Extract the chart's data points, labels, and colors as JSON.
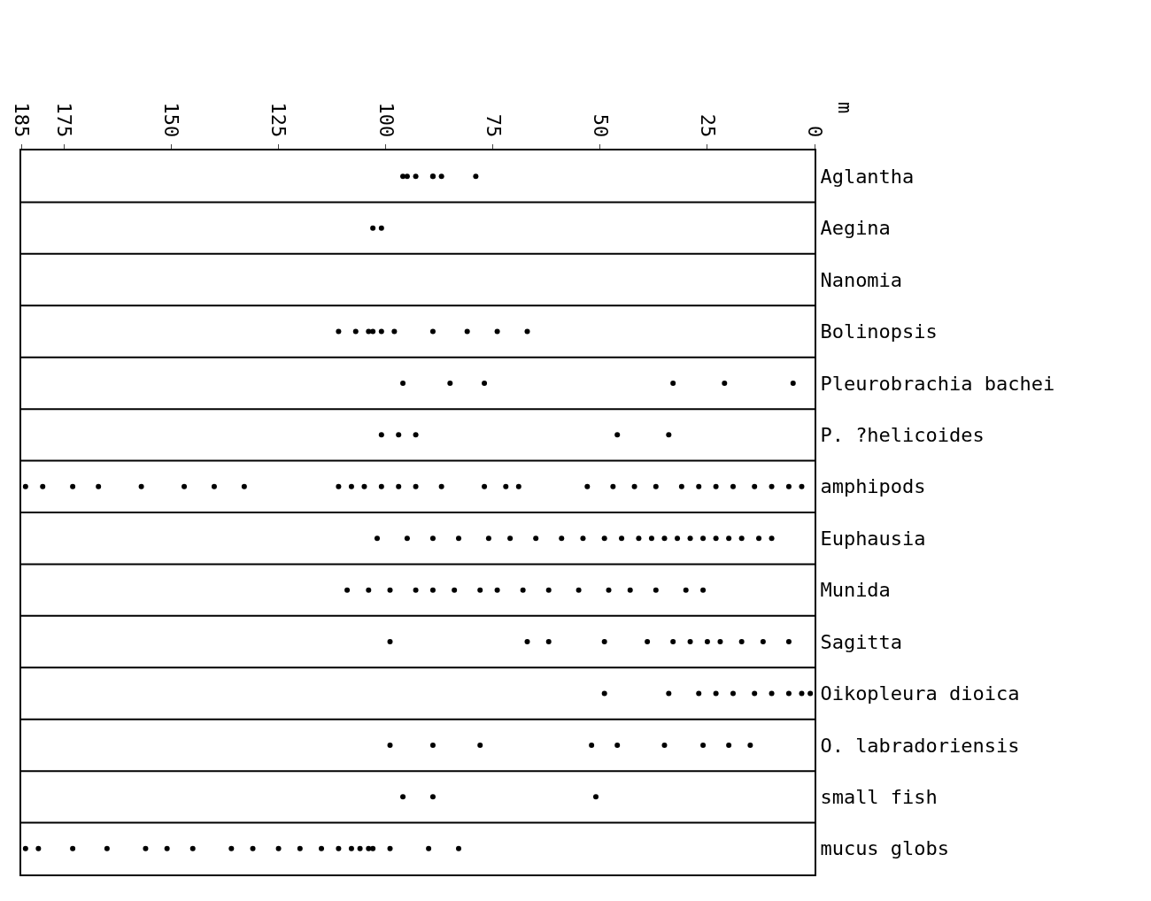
{
  "chart_data": {
    "type": "scatter",
    "annotations": [
      "m"
    ],
    "orientation": "horizontal",
    "marker": "circle",
    "grid": true,
    "categories": [
      "Aglantha",
      "Aegina",
      "Nanomia",
      "Bolinopsis",
      "Pleurobrachia bachei",
      "P. ?helicoides",
      "amphipods",
      "Euphausia",
      "Munida",
      "Sagitta",
      "Oikopleura dioica",
      "O. labradoriensis",
      "small fish",
      "mucus globs"
    ],
    "xlim": [
      185,
      0
    ],
    "xticks": [
      185,
      175,
      150,
      125,
      100,
      75,
      50,
      25,
      0
    ],
    "series": [
      {
        "color": "#000000",
        "x": [
          "Aglantha",
          "Aglantha",
          "Aglantha",
          "Aglantha",
          "Aglantha",
          "Aglantha",
          "Aglantha",
          "Aegina",
          "Aegina",
          "Bolinopsis",
          "Bolinopsis",
          "Bolinopsis",
          "Bolinopsis",
          "Bolinopsis",
          "Bolinopsis",
          "Bolinopsis",
          "Bolinopsis",
          "Bolinopsis",
          "Bolinopsis",
          "Pleurobrachia bachei",
          "Pleurobrachia bachei",
          "Pleurobrachia bachei",
          "Pleurobrachia bachei",
          "Pleurobrachia bachei",
          "Pleurobrachia bachei",
          "P. ?helicoides",
          "P. ?helicoides",
          "P. ?helicoides",
          "P. ?helicoides",
          "P. ?helicoides",
          "amphipods",
          "amphipods",
          "amphipods",
          "amphipods",
          "amphipods",
          "amphipods",
          "amphipods",
          "amphipods",
          "amphipods",
          "amphipods",
          "amphipods",
          "amphipods",
          "amphipods",
          "amphipods",
          "amphipods",
          "amphipods",
          "amphipods",
          "amphipods",
          "amphipods",
          "amphipods",
          "amphipods",
          "amphipods",
          "amphipods",
          "amphipods",
          "amphipods",
          "amphipods",
          "amphipods",
          "amphipods",
          "amphipods",
          "amphipods",
          "Euphausia",
          "Euphausia",
          "Euphausia",
          "Euphausia",
          "Euphausia",
          "Euphausia",
          "Euphausia",
          "Euphausia",
          "Euphausia",
          "Euphausia",
          "Euphausia",
          "Euphausia",
          "Euphausia",
          "Euphausia",
          "Euphausia",
          "Euphausia",
          "Euphausia",
          "Euphausia",
          "Euphausia",
          "Euphausia",
          "Euphausia",
          "Euphausia",
          "Munida",
          "Munida",
          "Munida",
          "Munida",
          "Munida",
          "Munida",
          "Munida",
          "Munida",
          "Munida",
          "Munida",
          "Munida",
          "Munida",
          "Munida",
          "Munida",
          "Munida",
          "Munida",
          "Sagitta",
          "Sagitta",
          "Sagitta",
          "Sagitta",
          "Sagitta",
          "Sagitta",
          "Sagitta",
          "Sagitta",
          "Sagitta",
          "Sagitta",
          "Sagitta",
          "Sagitta",
          "Oikopleura dioica",
          "Oikopleura dioica",
          "Oikopleura dioica",
          "Oikopleura dioica",
          "Oikopleura dioica",
          "Oikopleura dioica",
          "Oikopleura dioica",
          "Oikopleura dioica",
          "Oikopleura dioica",
          "Oikopleura dioica",
          "O. labradoriensis",
          "O. labradoriensis",
          "O. labradoriensis",
          "O. labradoriensis",
          "O. labradoriensis",
          "O. labradoriensis",
          "O. labradoriensis",
          "O. labradoriensis",
          "O. labradoriensis",
          "small fish",
          "small fish",
          "small fish",
          "mucus globs",
          "mucus globs",
          "mucus globs",
          "mucus globs",
          "mucus globs",
          "mucus globs",
          "mucus globs",
          "mucus globs",
          "mucus globs",
          "mucus globs",
          "mucus globs",
          "mucus globs",
          "mucus globs",
          "mucus globs",
          "mucus globs",
          "mucus globs",
          "mucus globs",
          "mucus globs",
          "mucus globs",
          "mucus globs"
        ],
        "values": [
          96,
          89,
          95,
          93,
          89,
          87,
          79,
          101,
          103,
          111,
          107,
          101,
          104,
          98,
          103,
          89,
          81,
          74,
          67,
          96,
          85,
          77,
          33,
          21,
          5,
          101,
          97,
          93,
          46,
          34,
          184,
          180,
          173,
          167,
          157,
          147,
          140,
          133,
          111,
          108,
          105,
          101,
          97,
          93,
          87,
          77,
          72,
          69,
          53,
          47,
          42,
          37,
          31,
          27,
          23,
          19,
          14,
          10,
          6,
          3,
          102,
          95,
          89,
          83,
          76,
          71,
          65,
          59,
          54,
          49,
          45,
          41,
          38,
          35,
          32,
          29,
          26,
          23,
          20,
          17,
          13,
          10,
          109,
          104,
          99,
          93,
          89,
          84,
          78,
          74,
          68,
          62,
          55,
          48,
          43,
          37,
          30,
          26,
          99,
          67,
          62,
          49,
          39,
          33,
          29,
          25,
          22,
          17,
          12,
          6,
          49,
          34,
          27,
          23,
          19,
          14,
          10,
          6,
          3,
          1,
          99,
          89,
          78,
          52,
          46,
          35,
          26,
          20,
          15,
          96,
          89,
          51,
          184,
          181,
          173,
          165,
          156,
          151,
          145,
          136,
          131,
          125,
          120,
          115,
          111,
          108,
          106,
          104,
          103,
          99,
          90,
          83
        ]
      }
    ]
  }
}
